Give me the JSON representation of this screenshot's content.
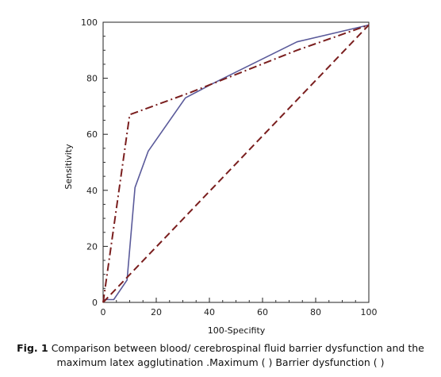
{
  "chart_data": {
    "type": "line",
    "title": "",
    "xlabel": "100-Specifity",
    "ylabel": "Sensitivity",
    "xlim": [
      0,
      100
    ],
    "ylim": [
      0,
      100
    ],
    "xticks": [
      "0",
      "20",
      "40",
      "60",
      "80",
      "100"
    ],
    "yticks": [
      "0",
      "20",
      "40",
      "60",
      "80",
      "100"
    ],
    "grid": false,
    "series": [
      {
        "color": "#5a5a9a",
        "style": "solid",
        "points": [
          [
            0,
            1
          ],
          [
            4,
            1
          ],
          [
            9,
            8
          ],
          [
            12,
            41
          ],
          [
            17,
            54
          ],
          [
            31,
            73
          ],
          [
            41,
            78
          ],
          [
            73,
            93
          ],
          [
            100,
            99
          ]
        ]
      },
      {
        "color": "#7a1e1e",
        "style": "dashdot",
        "points": [
          [
            0,
            0
          ],
          [
            10,
            67
          ],
          [
            33,
            75
          ],
          [
            73,
            90
          ],
          [
            100,
            99
          ]
        ]
      },
      {
        "color": "#7a1e1e",
        "style": "dashed",
        "points": [
          [
            0,
            0
          ],
          [
            100,
            99
          ]
        ]
      }
    ]
  },
  "caption": {
    "label": "Fig. 1",
    "line1": " Comparison between blood/ cerebrospinal fluid barrier dysfunction and the",
    "line2": "maximum latex agglutination .Maximum ( ) Barrier dysfunction ( )"
  }
}
